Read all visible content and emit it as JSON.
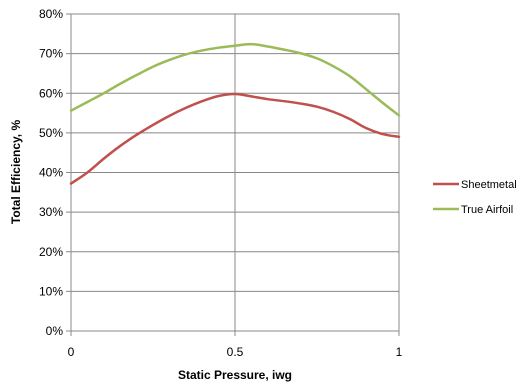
{
  "chart_data": {
    "type": "line",
    "title": "",
    "xlabel": "Static Pressure, iwg",
    "ylabel": "Total Efficiency, %",
    "xlim": [
      0,
      1
    ],
    "ylim": [
      0,
      0.8
    ],
    "x_ticks": [
      {
        "value": 0,
        "label": "0"
      },
      {
        "value": 0.5,
        "label": "0.5"
      },
      {
        "value": 1,
        "label": "1"
      }
    ],
    "y_ticks": [
      {
        "value": 0,
        "label": "0%"
      },
      {
        "value": 0.1,
        "label": "10%"
      },
      {
        "value": 0.2,
        "label": "20%"
      },
      {
        "value": 0.3,
        "label": "30%"
      },
      {
        "value": 0.4,
        "label": "40%"
      },
      {
        "value": 0.5,
        "label": "50%"
      },
      {
        "value": 0.6,
        "label": "60%"
      },
      {
        "value": 0.7,
        "label": "70%"
      },
      {
        "value": 0.8,
        "label": "80%"
      }
    ],
    "grid": {
      "horizontal": true,
      "vertical": true
    },
    "legend_position": "right",
    "series": [
      {
        "name": "Sheetmetal",
        "color": "#c0504d",
        "points": [
          [
            0,
            0.372
          ],
          [
            0.05,
            0.4
          ],
          [
            0.1,
            0.435
          ],
          [
            0.15,
            0.467
          ],
          [
            0.2,
            0.495
          ],
          [
            0.25,
            0.52
          ],
          [
            0.3,
            0.543
          ],
          [
            0.35,
            0.563
          ],
          [
            0.4,
            0.58
          ],
          [
            0.45,
            0.593
          ],
          [
            0.5,
            0.598
          ],
          [
            0.55,
            0.592
          ],
          [
            0.6,
            0.585
          ],
          [
            0.65,
            0.58
          ],
          [
            0.7,
            0.574
          ],
          [
            0.75,
            0.566
          ],
          [
            0.8,
            0.553
          ],
          [
            0.85,
            0.535
          ],
          [
            0.9,
            0.512
          ],
          [
            0.95,
            0.497
          ],
          [
            1,
            0.49
          ]
        ]
      },
      {
        "name": "True Airfoil",
        "color": "#9bbb59",
        "points": [
          [
            0,
            0.556
          ],
          [
            0.05,
            0.578
          ],
          [
            0.1,
            0.6
          ],
          [
            0.15,
            0.624
          ],
          [
            0.2,
            0.646
          ],
          [
            0.25,
            0.667
          ],
          [
            0.3,
            0.684
          ],
          [
            0.35,
            0.698
          ],
          [
            0.4,
            0.708
          ],
          [
            0.45,
            0.715
          ],
          [
            0.5,
            0.72
          ],
          [
            0.55,
            0.724
          ],
          [
            0.6,
            0.718
          ],
          [
            0.65,
            0.71
          ],
          [
            0.7,
            0.701
          ],
          [
            0.75,
            0.688
          ],
          [
            0.8,
            0.668
          ],
          [
            0.85,
            0.643
          ],
          [
            0.9,
            0.61
          ],
          [
            0.95,
            0.576
          ],
          [
            1,
            0.544
          ]
        ]
      }
    ]
  }
}
